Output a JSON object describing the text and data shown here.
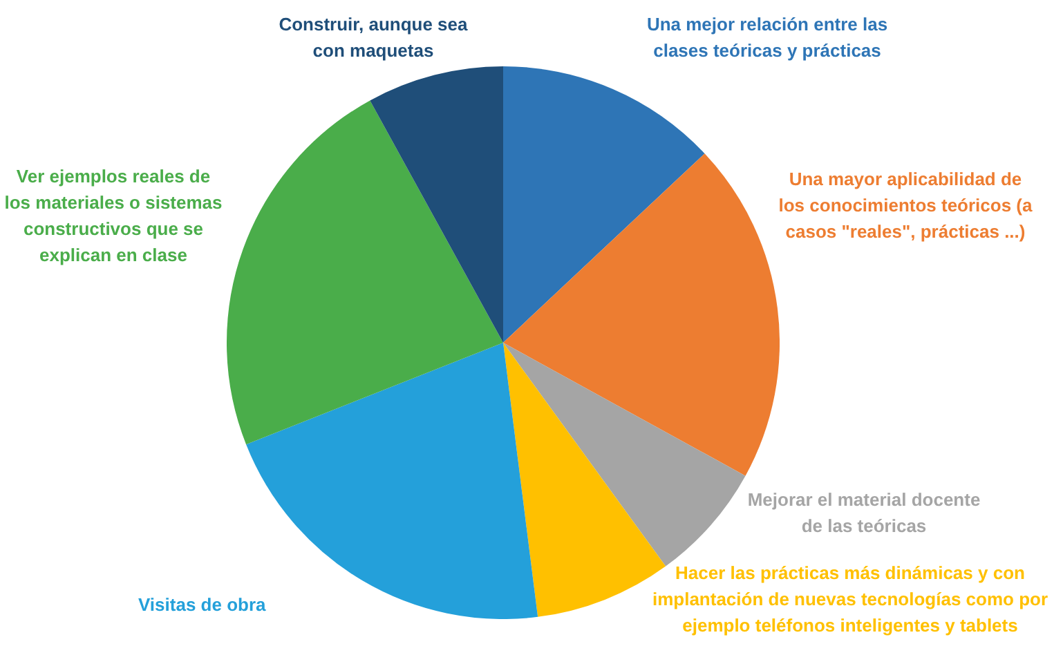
{
  "chart_data": {
    "type": "pie",
    "categories": [
      "Una mejor relación entre las clases teóricas y prácticas",
      "Una mayor aplicabilidad de los conocimientos teóricos (a casos \"reales\", prácticas ...)",
      "Mejorar el material docente de las teóricas",
      "Hacer las prácticas más dinámicas y con implantación de nuevas tecnologías como por ejemplo teléfonos inteligentes y tablets",
      "Visitas de obra",
      "Ver ejemplos reales de los materiales o sistemas constructivos que se explican en clase",
      "Construir, aunque sea con maquetas"
    ],
    "values": [
      13,
      20,
      7,
      8,
      21,
      23,
      8
    ],
    "colors": [
      "#2e75b6",
      "#ed7d31",
      "#a5a5a5",
      "#ffc000",
      "#24a0da",
      "#4aad4a",
      "#1f4e79"
    ],
    "legend": false
  }
}
